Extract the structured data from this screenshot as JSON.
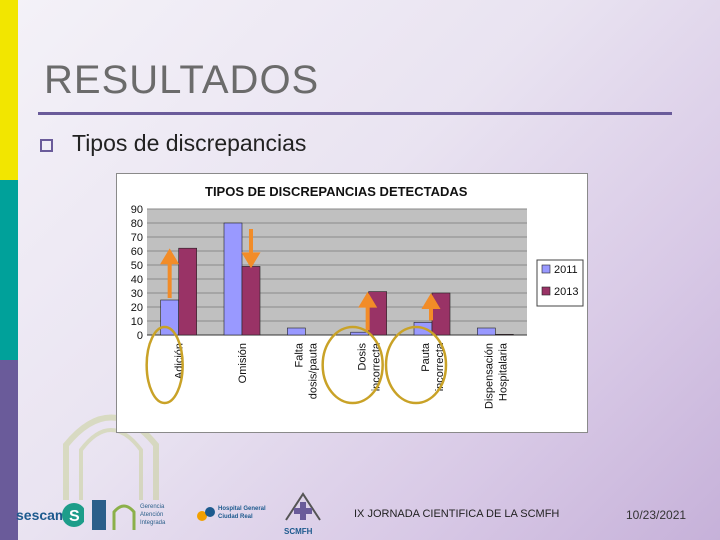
{
  "slide": {
    "title": "RESULTADOS",
    "bullet": "Tipos de discrepancias",
    "footer_text": "IX JORNADA CIENTIFICA DE LA SCMFH",
    "footer_date": "10/23/2021"
  },
  "logos": {
    "sescam": "sescam",
    "gerencia": "Gerencia Atención Integrada",
    "hospital": "Hospital General Ciudad Real",
    "scmfh": "SCMFH"
  },
  "colors": {
    "accent": "#6a5b9a",
    "series_2011": "#9999ff",
    "series_2013": "#993366",
    "arrow": "#f28c28",
    "highlight": "#c9a227"
  },
  "chart_data": {
    "type": "bar",
    "title": "TIPOS DE DISCREPANCIAS DETECTADAS",
    "categories": [
      [
        "Adición"
      ],
      [
        "Omisión"
      ],
      [
        "Falta",
        "dosis/pauta"
      ],
      [
        "Dosis",
        "incorrecta"
      ],
      [
        "Pauta",
        "incorrecta"
      ],
      [
        "Dispensación",
        "Hospitalaria"
      ]
    ],
    "series": [
      {
        "name": "2011",
        "values": [
          25,
          80,
          5,
          2,
          9,
          5
        ]
      },
      {
        "name": "2013",
        "values": [
          62,
          49,
          0,
          31,
          30,
          0.5
        ]
      }
    ],
    "ylim": [
      0,
      90
    ],
    "yticks": [
      "0",
      "10",
      "20",
      "30",
      "40",
      "50",
      "60",
      "70",
      "80",
      "90"
    ],
    "grid": true,
    "legend": "right",
    "arrows": [
      {
        "category": 0,
        "direction": "up"
      },
      {
        "category": 1,
        "direction": "down"
      },
      {
        "category": 3,
        "direction": "up"
      },
      {
        "category": 4,
        "direction": "up"
      }
    ],
    "highlighted_categories": [
      0,
      3,
      4
    ]
  }
}
